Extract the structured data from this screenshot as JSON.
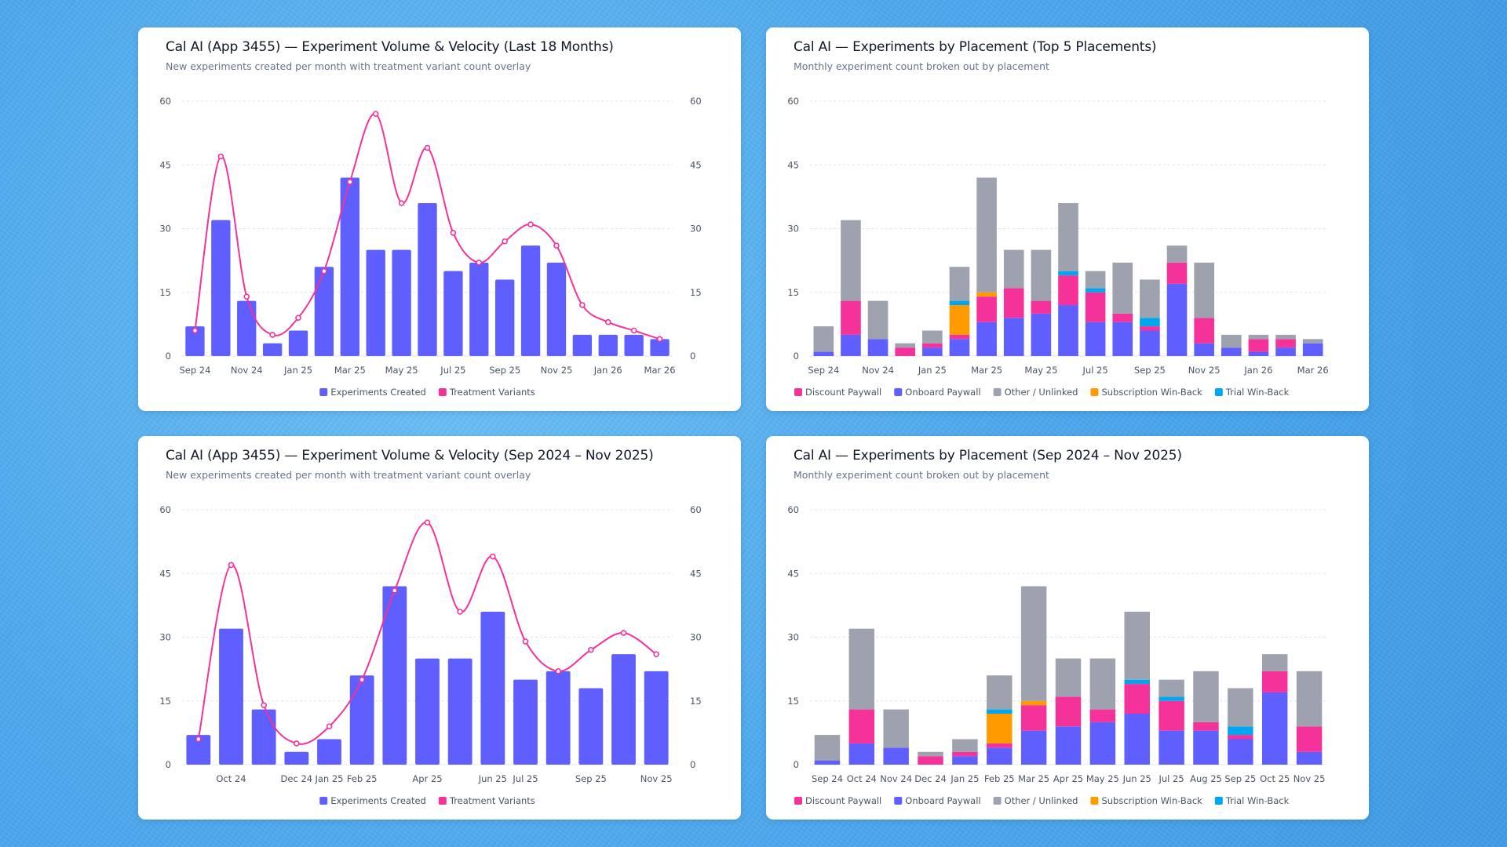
{
  "colors": {
    "experiments": "#5f5fff",
    "variants": "#f5329a",
    "discount": "#f5329a",
    "onboard": "#5f5fff",
    "other": "#9ea2ae",
    "subscription": "#ff9a00",
    "trial": "#00a6f0",
    "grid": "#e2e4ea"
  },
  "cards": [
    {
      "title": "Cal AI (App 3455) — Experiment Volume & Velocity (Last 18 Months)",
      "subtitle": "New experiments created per month with treatment variant count overlay"
    },
    {
      "title": "Cal AI — Experiments by Placement (Top 5 Placements)",
      "subtitle": "Monthly experiment count broken out by placement"
    },
    {
      "title": "Cal AI (App 3455) — Experiment Volume & Velocity (Sep 2024 – Nov 2025)",
      "subtitle": "New experiments created per month with treatment variant count overlay"
    },
    {
      "title": "Cal AI — Experiments by Placement (Sep 2024 – Nov 2025)",
      "subtitle": "Monthly experiment count broken out by placement"
    }
  ],
  "chart_data": [
    {
      "type": "bar+line",
      "ylim": [
        0,
        60
      ],
      "yticks": [
        0,
        15,
        30,
        45,
        60
      ],
      "right_axis": true,
      "grid": true,
      "legend": "bottom",
      "categories": [
        "Sep 24",
        "Oct 24",
        "Nov 24",
        "Dec 24",
        "Jan 25",
        "Feb 25",
        "Mar 25",
        "Apr 25",
        "May 25",
        "Jun 25",
        "Jul 25",
        "Aug 25",
        "Sep 25",
        "Oct 25",
        "Nov 25",
        "Dec 25",
        "Jan 26",
        "Feb 26",
        "Mar 26"
      ],
      "x_labels": [
        "Sep 24",
        "",
        "Nov 24",
        "",
        "Jan 25",
        "",
        "Mar 25",
        "",
        "May 25",
        "",
        "Jul 25",
        "",
        "Sep 25",
        "",
        "Nov 25",
        "",
        "Jan 26",
        "",
        "Mar 26"
      ],
      "series": [
        {
          "name": "Experiments Created",
          "kind": "bar",
          "color_key": "experiments",
          "values": [
            7,
            32,
            13,
            3,
            6,
            21,
            42,
            25,
            25,
            36,
            20,
            22,
            18,
            26,
            22,
            5,
            5,
            5,
            4
          ]
        },
        {
          "name": "Treatment Variants",
          "kind": "line",
          "color_key": "variants",
          "values": [
            6,
            47,
            14,
            5,
            9,
            20,
            41,
            57,
            36,
            49,
            29,
            22,
            27,
            31,
            26,
            12,
            8,
            6,
            4
          ]
        }
      ]
    },
    {
      "type": "stacked-bar",
      "ylim": [
        0,
        60
      ],
      "yticks": [
        0,
        15,
        30,
        45,
        60
      ],
      "right_axis": false,
      "grid": true,
      "legend": "bottom",
      "categories": [
        "Sep 24",
        "Oct 24",
        "Nov 24",
        "Dec 24",
        "Jan 25",
        "Feb 25",
        "Mar 25",
        "Apr 25",
        "May 25",
        "Jun 25",
        "Jul 25",
        "Aug 25",
        "Sep 25",
        "Oct 25",
        "Nov 25",
        "Dec 25",
        "Jan 26",
        "Feb 26",
        "Mar 26"
      ],
      "x_labels": [
        "Sep 24",
        "",
        "Nov 24",
        "",
        "Jan 25",
        "",
        "Mar 25",
        "",
        "May 25",
        "",
        "Jul 25",
        "",
        "Sep 25",
        "",
        "Nov 25",
        "",
        "Jan 26",
        "",
        "Mar 26"
      ],
      "legend_order": [
        "Discount Paywall",
        "Onboard Paywall",
        "Other / Unlinked",
        "Subscription Win-Back",
        "Trial Win-Back"
      ],
      "series": [
        {
          "name": "Onboard Paywall",
          "color_key": "onboard",
          "values": [
            1,
            5,
            4,
            0,
            2,
            4,
            8,
            9,
            10,
            12,
            8,
            8,
            6,
            17,
            3,
            2,
            1,
            2,
            3
          ]
        },
        {
          "name": "Discount Paywall",
          "color_key": "discount",
          "values": [
            0,
            8,
            0,
            2,
            1,
            1,
            6,
            7,
            3,
            7,
            7,
            2,
            1,
            5,
            6,
            0,
            3,
            2,
            0
          ]
        },
        {
          "name": "Subscription Win-Back",
          "color_key": "subscription",
          "values": [
            0,
            0,
            0,
            0,
            0,
            7,
            1,
            0,
            0,
            0,
            0,
            0,
            0,
            0,
            0,
            0,
            0,
            0,
            0
          ]
        },
        {
          "name": "Trial Win-Back",
          "color_key": "trial",
          "values": [
            0,
            0,
            0,
            0,
            0,
            1,
            0,
            0,
            0,
            1,
            1,
            0,
            2,
            0,
            0,
            0,
            0,
            0,
            0
          ]
        },
        {
          "name": "Other / Unlinked",
          "color_key": "other",
          "values": [
            6,
            19,
            9,
            1,
            3,
            8,
            27,
            9,
            12,
            16,
            4,
            12,
            9,
            4,
            13,
            3,
            1,
            1,
            1
          ]
        }
      ]
    },
    {
      "type": "bar+line",
      "ylim": [
        0,
        60
      ],
      "yticks": [
        0,
        15,
        30,
        45,
        60
      ],
      "right_axis": true,
      "grid": true,
      "legend": "bottom",
      "categories": [
        "Sep 24",
        "Oct 24",
        "Nov 24",
        "Dec 24",
        "Jan 25",
        "Feb 25",
        "Mar 25",
        "Apr 25",
        "May 25",
        "Jun 25",
        "Jul 25",
        "Aug 25",
        "Sep 25",
        "Oct 25",
        "Nov 25"
      ],
      "x_labels": [
        "",
        "Oct 24",
        "",
        "Dec 24",
        "Jan 25",
        "Feb 25",
        "",
        "Apr 25",
        "",
        "Jun 25",
        "Jul 25",
        "",
        "Sep 25",
        "",
        "Nov 25"
      ],
      "series": [
        {
          "name": "Experiments Created",
          "kind": "bar",
          "color_key": "experiments",
          "values": [
            7,
            32,
            13,
            3,
            6,
            21,
            42,
            25,
            25,
            36,
            20,
            22,
            18,
            26,
            22
          ]
        },
        {
          "name": "Treatment Variants",
          "kind": "line",
          "color_key": "variants",
          "values": [
            6,
            47,
            14,
            5,
            9,
            20,
            41,
            57,
            36,
            49,
            29,
            22,
            27,
            31,
            26
          ]
        }
      ]
    },
    {
      "type": "stacked-bar",
      "ylim": [
        0,
        60
      ],
      "yticks": [
        0,
        15,
        30,
        45,
        60
      ],
      "right_axis": false,
      "grid": true,
      "legend": "bottom",
      "categories": [
        "Sep 24",
        "Oct 24",
        "Nov 24",
        "Dec 24",
        "Jan 25",
        "Feb 25",
        "Mar 25",
        "Apr 25",
        "May 25",
        "Jun 25",
        "Jul 25",
        "Aug 25",
        "Sep 25",
        "Oct 25",
        "Nov 25"
      ],
      "x_labels": [
        "Sep 24",
        "Oct 24",
        "Nov 24",
        "Dec 24",
        "Jan 25",
        "Feb 25",
        "Mar 25",
        "Apr 25",
        "May 25",
        "Jun 25",
        "Jul 25",
        "Aug 25",
        "Sep 25",
        "Oct 25",
        "Nov 25"
      ],
      "legend_order": [
        "Discount Paywall",
        "Onboard Paywall",
        "Other / Unlinked",
        "Subscription Win-Back",
        "Trial Win-Back"
      ],
      "series": [
        {
          "name": "Onboard Paywall",
          "color_key": "onboard",
          "values": [
            1,
            5,
            4,
            0,
            2,
            4,
            8,
            9,
            10,
            12,
            8,
            8,
            6,
            17,
            3
          ]
        },
        {
          "name": "Discount Paywall",
          "color_key": "discount",
          "values": [
            0,
            8,
            0,
            2,
            1,
            1,
            6,
            7,
            3,
            7,
            7,
            2,
            1,
            5,
            6
          ]
        },
        {
          "name": "Subscription Win-Back",
          "color_key": "subscription",
          "values": [
            0,
            0,
            0,
            0,
            0,
            7,
            1,
            0,
            0,
            0,
            0,
            0,
            0,
            0,
            0
          ]
        },
        {
          "name": "Trial Win-Back",
          "color_key": "trial",
          "values": [
            0,
            0,
            0,
            0,
            0,
            1,
            0,
            0,
            0,
            1,
            1,
            0,
            2,
            0,
            0
          ]
        },
        {
          "name": "Other / Unlinked",
          "color_key": "other",
          "values": [
            6,
            19,
            9,
            1,
            3,
            8,
            27,
            9,
            12,
            16,
            4,
            12,
            9,
            4,
            13
          ]
        }
      ]
    }
  ]
}
